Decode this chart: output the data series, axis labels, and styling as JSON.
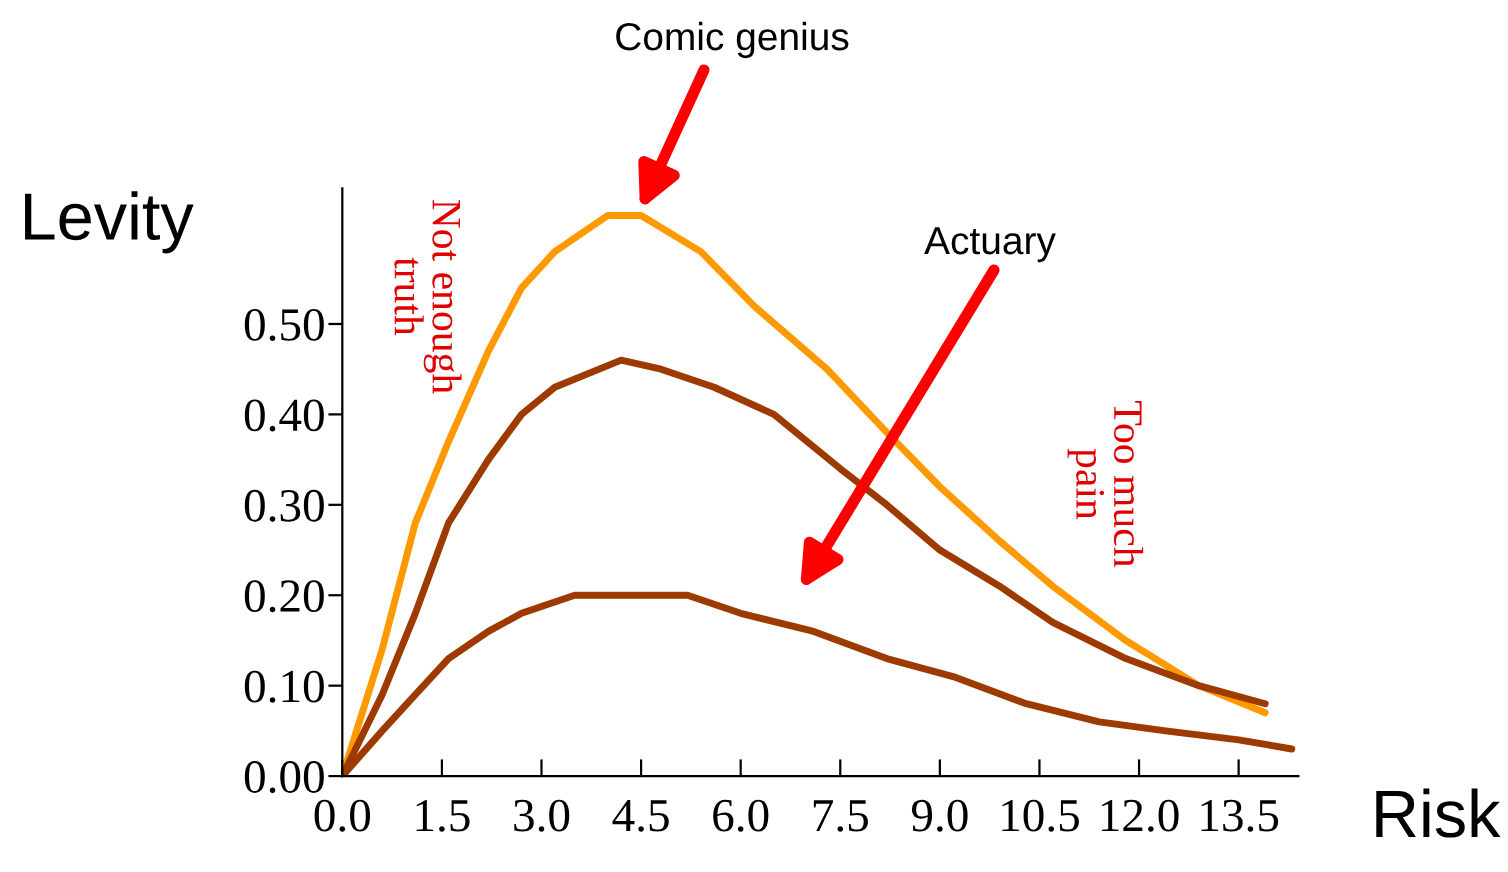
{
  "chart_data": {
    "type": "line",
    "xlabel": "Risk",
    "ylabel": "Levity",
    "xlim": [
      0,
      14.4
    ],
    "ylim": [
      0,
      0.65
    ],
    "xticks": [
      {
        "value": 0,
        "label": "0.0"
      },
      1.5,
      {
        "value": 3,
        "label": "3.0"
      },
      4.5,
      {
        "value": 6,
        "label": "6.0"
      },
      7.5,
      {
        "value": 9,
        "label": "9.0"
      },
      10.5,
      {
        "value": 12,
        "label": "12.0"
      },
      13.5
    ],
    "yticks": [
      {
        "value": 0,
        "label": "0.00"
      },
      {
        "value": 0.1,
        "label": "0.10"
      },
      {
        "value": 0.2,
        "label": "0.20"
      },
      {
        "value": 0.3,
        "label": "0.30"
      },
      {
        "value": 0.4,
        "label": "0.40"
      },
      {
        "value": 0.5,
        "label": "0.50"
      }
    ],
    "grid": false,
    "legend": false,
    "marker": "none",
    "line_style": "solid",
    "series": [
      {
        "color": "#ff9900",
        "x": [
          0,
          0.6,
          1.1,
          1.6,
          2.2,
          2.7,
          3.2,
          4.0,
          4.5,
          5.4,
          6.2,
          7.3,
          8.2,
          9.0,
          9.9,
          10.7,
          11.8,
          12.9,
          13.9
        ],
        "values": [
          0,
          0.14,
          0.28,
          0.37,
          0.47,
          0.54,
          0.58,
          0.62,
          0.62,
          0.58,
          0.52,
          0.45,
          0.38,
          0.32,
          0.26,
          0.21,
          0.15,
          0.1,
          0.07
        ]
      },
      {
        "color": "#9c3a00",
        "x": [
          0,
          0.6,
          1.1,
          1.6,
          2.2,
          2.7,
          3.2,
          4.2,
          4.8,
          5.6,
          6.5,
          7.5,
          8.2,
          9.0,
          9.9,
          10.7,
          11.8,
          12.9,
          13.9
        ],
        "values": [
          0,
          0.09,
          0.18,
          0.28,
          0.35,
          0.4,
          0.43,
          0.46,
          0.45,
          0.43,
          0.4,
          0.34,
          0.3,
          0.25,
          0.21,
          0.17,
          0.13,
          0.1,
          0.08
        ]
      },
      {
        "color": "#9c3a00",
        "x": [
          0,
          0.6,
          1.1,
          1.6,
          2.2,
          2.7,
          3.5,
          4.3,
          5.2,
          6.0,
          7.1,
          8.2,
          9.2,
          10.3,
          11.4,
          12.4,
          13.5,
          14.3
        ],
        "values": [
          0,
          0.05,
          0.09,
          0.13,
          0.16,
          0.18,
          0.2,
          0.2,
          0.2,
          0.18,
          0.16,
          0.13,
          0.11,
          0.08,
          0.06,
          0.05,
          0.04,
          0.03
        ]
      }
    ],
    "annotations": [
      "Comic genius",
      "Actuary",
      "Not enough\ntruth",
      "Too much\npain"
    ]
  }
}
